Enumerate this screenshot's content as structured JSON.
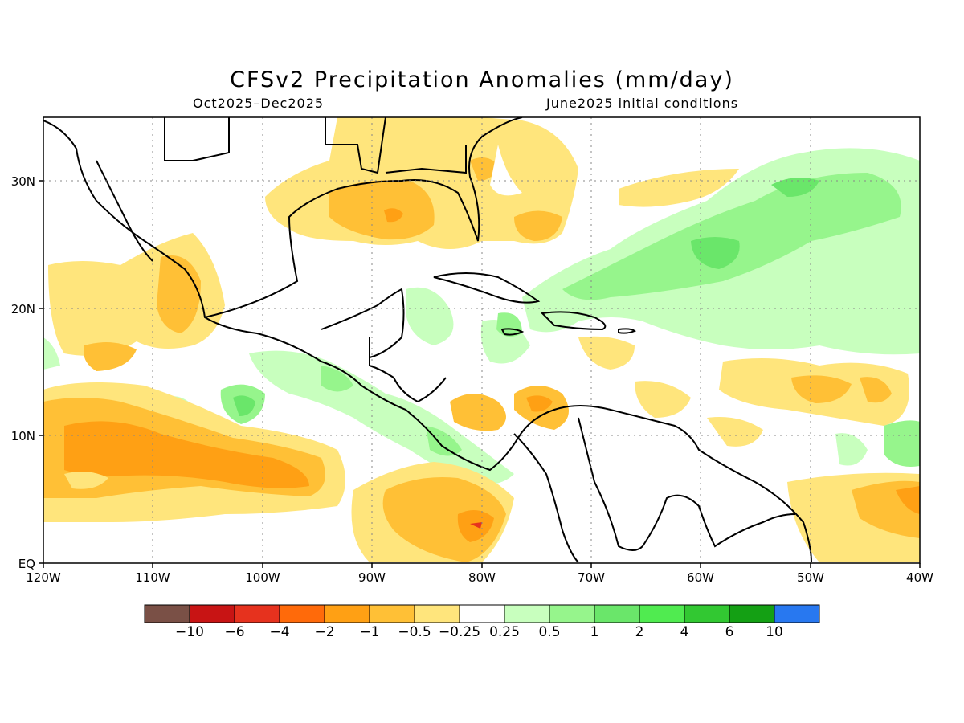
{
  "title": "CFSv2 Precipitation Anomalies (mm/day)",
  "subtitle_left": "Oct2025–Dec2025",
  "subtitle_right": "June2025 initial conditions",
  "map": {
    "lon_range": [
      -120,
      -40
    ],
    "lat_range": [
      0,
      35
    ],
    "x_ticks": [
      "120W",
      "110W",
      "100W",
      "90W",
      "80W",
      "70W",
      "60W",
      "50W",
      "40W"
    ],
    "y_ticks": [
      "EQ",
      "10N",
      "20N",
      "30N"
    ],
    "grid": "dotted"
  },
  "colorbar": {
    "colors": [
      "#7a5046",
      "#c81414",
      "#e6321e",
      "#ff6a0a",
      "#ffa014",
      "#ffc036",
      "#ffe57c",
      "#ffffff",
      "#c8ffbe",
      "#96f58c",
      "#6ae66a",
      "#50eb50",
      "#32c832",
      "#14a014",
      "#2878f0"
    ],
    "labels": [
      "−10",
      "−6",
      "−4",
      "−2",
      "−1",
      "−0.5",
      "−0.25",
      "0.25",
      "0.5",
      "1",
      "2",
      "4",
      "6",
      "10"
    ]
  }
}
